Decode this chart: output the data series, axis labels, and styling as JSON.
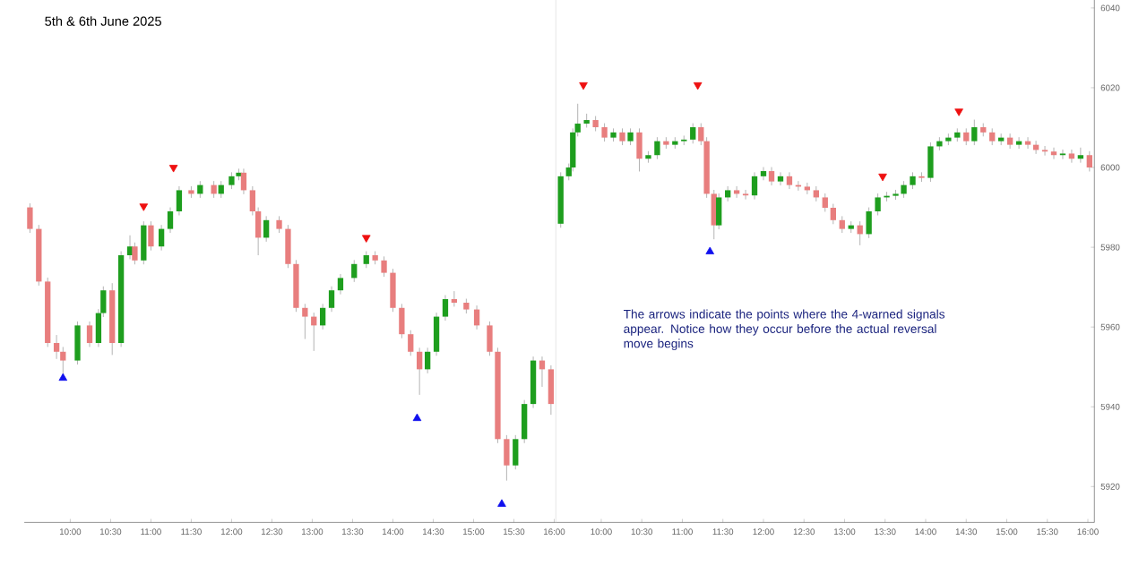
{
  "chart_data": [
    {
      "type": "candlestick",
      "title": "5th & 6th June 2025",
      "tick_labels": "x",
      "x": [
        9.5,
        9.61,
        9.72,
        9.83,
        9.91,
        10.09,
        10.24,
        10.35,
        10.41,
        10.52,
        10.63,
        10.74,
        10.8,
        10.91,
        11.0,
        11.13,
        11.24,
        11.35,
        11.5,
        11.61,
        11.78,
        11.87,
        12.0,
        12.09,
        12.15,
        12.26,
        12.33,
        12.43,
        12.59,
        12.7,
        12.8,
        12.91,
        13.02,
        13.13,
        13.24,
        13.35,
        13.52,
        13.67,
        13.78,
        13.89,
        14.0,
        14.11,
        14.22,
        14.33,
        14.43,
        14.54,
        14.65,
        14.76,
        14.91,
        15.04,
        15.2,
        15.3,
        15.41,
        15.52,
        15.63,
        15.74,
        15.85,
        15.96
      ],
      "ohlc": [
        [
          5990.0,
          5991.0,
          5983.6,
          5984.6
        ],
        [
          5984.6,
          5985.6,
          5970.4,
          5971.4
        ],
        [
          5971.4,
          5972.4,
          5955.0,
          5956.0
        ],
        [
          5956.0,
          5958.0,
          5952.0,
          5953.8
        ],
        [
          5953.8,
          5955.0,
          5948.0,
          5951.6
        ],
        [
          5951.6,
          5961.4,
          5950.6,
          5960.4
        ],
        [
          5960.4,
          5961.4,
          5955.0,
          5956.0
        ],
        [
          5956.0,
          5964.5,
          5955.0,
          5963.5
        ],
        [
          5963.5,
          5970.2,
          5962.5,
          5969.2
        ],
        [
          5969.2,
          5971.0,
          5953.0,
          5956.0
        ],
        [
          5956.0,
          5979.0,
          5955.0,
          5978.0
        ],
        [
          5978.0,
          5983.0,
          5977.0,
          5980.2
        ],
        [
          5980.2,
          5981.2,
          5975.7,
          5976.7
        ],
        [
          5976.7,
          5986.5,
          5975.7,
          5985.5
        ],
        [
          5985.5,
          5986.5,
          5979.2,
          5980.2
        ],
        [
          5980.2,
          5985.6,
          5979.2,
          5984.6
        ],
        [
          5984.6,
          5990.0,
          5983.6,
          5989.0
        ],
        [
          5989.0,
          5995.3,
          5988.0,
          5994.3
        ],
        [
          5994.3,
          5995.3,
          5992.4,
          5993.4
        ],
        [
          5993.4,
          5996.6,
          5992.4,
          5995.6
        ],
        [
          5995.6,
          5996.6,
          5992.4,
          5993.4
        ],
        [
          5993.4,
          5996.6,
          5992.4,
          5995.6
        ],
        [
          5995.6,
          5998.8,
          5994.6,
          5997.8
        ],
        [
          5997.8,
          5999.7,
          5996.8,
          5998.7
        ],
        [
          5998.7,
          5999.7,
          5993.3,
          5994.3
        ],
        [
          5994.3,
          5995.3,
          5988.0,
          5989.0
        ],
        [
          5989.0,
          5990.0,
          5978.0,
          5982.4
        ],
        [
          5982.4,
          5987.8,
          5981.4,
          5986.8
        ],
        [
          5986.8,
          5987.8,
          5983.6,
          5984.6
        ],
        [
          5984.6,
          5985.6,
          5974.8,
          5975.8
        ],
        [
          5975.8,
          5976.8,
          5963.8,
          5964.8
        ],
        [
          5964.8,
          5965.8,
          5957.0,
          5962.6
        ],
        [
          5962.6,
          5963.6,
          5954.0,
          5960.4
        ],
        [
          5960.4,
          5965.8,
          5959.4,
          5964.8
        ],
        [
          5964.8,
          5970.2,
          5963.8,
          5969.2
        ],
        [
          5969.2,
          5973.3,
          5968.2,
          5972.3
        ],
        [
          5972.3,
          5976.8,
          5971.3,
          5975.8
        ],
        [
          5975.8,
          5979.0,
          5974.8,
          5978.0
        ],
        [
          5978.0,
          5979.0,
          5975.7,
          5976.7
        ],
        [
          5976.7,
          5977.7,
          5972.6,
          5973.6
        ],
        [
          5973.6,
          5974.6,
          5963.8,
          5964.8
        ],
        [
          5964.8,
          5965.8,
          5957.2,
          5958.2
        ],
        [
          5958.2,
          5959.2,
          5952.8,
          5953.8
        ],
        [
          5953.8,
          5954.8,
          5943.0,
          5949.4
        ],
        [
          5949.4,
          5954.8,
          5948.4,
          5953.8
        ],
        [
          5953.8,
          5963.6,
          5952.8,
          5962.6
        ],
        [
          5962.6,
          5968.0,
          5961.6,
          5967.0
        ],
        [
          5967.0,
          5969.0,
          5965.1,
          5966.1
        ],
        [
          5966.1,
          5967.1,
          5963.4,
          5964.4
        ],
        [
          5964.4,
          5965.4,
          5959.4,
          5960.4
        ],
        [
          5960.4,
          5961.4,
          5952.8,
          5953.8
        ],
        [
          5953.8,
          5954.8,
          5930.9,
          5931.9
        ],
        [
          5931.9,
          5932.9,
          5921.5,
          5925.3
        ],
        [
          5925.3,
          5932.9,
          5924.3,
          5931.9
        ],
        [
          5931.9,
          5941.7,
          5930.9,
          5940.7
        ],
        [
          5940.7,
          5952.6,
          5939.7,
          5951.6
        ],
        [
          5951.6,
          5952.6,
          5945.0,
          5949.4
        ],
        [
          5949.4,
          5950.4,
          5938.0,
          5940.7
        ]
      ],
      "colors": [
        "#e87e7e",
        "#e87e7e",
        "#e87e7e",
        "#e87e7e",
        "#e87e7e",
        "#1e9e1e",
        "#e87e7e",
        "#1e9e1e",
        "#1e9e1e",
        "#e87e7e",
        "#1e9e1e",
        "#1e9e1e",
        "#e87e7e",
        "#1e9e1e",
        "#e87e7e",
        "#1e9e1e",
        "#1e9e1e",
        "#1e9e1e",
        "#e87e7e",
        "#1e9e1e",
        "#e87e7e",
        "#1e9e1e",
        "#1e9e1e",
        "#1e9e1e",
        "#e87e7e",
        "#e87e7e",
        "#e87e7e",
        "#1e9e1e",
        "#e87e7e",
        "#e87e7e",
        "#e87e7e",
        "#e87e7e",
        "#e87e7e",
        "#1e9e1e",
        "#1e9e1e",
        "#1e9e1e",
        "#1e9e1e",
        "#1e9e1e",
        "#e87e7e",
        "#e87e7e",
        "#e87e7e",
        "#e87e7e",
        "#e87e7e",
        "#e87e7e",
        "#1e9e1e",
        "#1e9e1e",
        "#1e9e1e",
        "#e87e7e",
        "#e87e7e",
        "#e87e7e",
        "#e87e7e",
        "#e87e7e",
        "#e87e7e",
        "#1e9e1e",
        "#1e9e1e",
        "#1e9e1e",
        "#e87e7e",
        "#e87e7e"
      ],
      "series": [
        {
          "type": "scatter",
          "marker": "triangle",
          "color": "#1010ee",
          "x": [
            9.91,
            14.3,
            15.35
          ],
          "values": [
            5947.2,
            5937.1,
            5915.6
          ]
        },
        {
          "type": "scatter",
          "marker": "triangle",
          "color": "#ee1010",
          "x": [
            10.91,
            11.28,
            13.67
          ],
          "values": [
            5990.3,
            6000.0,
            5982.4
          ]
        }
      ],
      "xlim": [
        9.43,
        16.02
      ],
      "ylim": [
        5911,
        6042
      ],
      "xticks": [
        {
          "value": 10.0,
          "label": "10:00"
        },
        {
          "value": 10.5,
          "label": "10:30"
        },
        {
          "value": 11.0,
          "label": "11:00"
        },
        {
          "value": 11.5,
          "label": "11:30"
        },
        {
          "value": 12.0,
          "label": "12:00"
        },
        {
          "value": 12.5,
          "label": "12:30"
        },
        {
          "value": 13.0,
          "label": "13:00"
        },
        {
          "value": 13.5,
          "label": "13:30"
        },
        {
          "value": 14.0,
          "label": "14:00"
        },
        {
          "value": 14.5,
          "label": "14:30"
        },
        {
          "value": 15.0,
          "label": "15:00"
        },
        {
          "value": 15.5,
          "label": "15:30"
        },
        {
          "value": 16.0,
          "label": "16:00"
        }
      ],
      "yticks": [
        5920,
        5940,
        5960,
        5980,
        6000,
        6020,
        6040
      ]
    },
    {
      "type": "candlestick",
      "annotations": [
        "The arrows indicate the points where the 4-warned signals appear. Notice how they occur before the actual reversal move begins"
      ],
      "x": [
        9.5,
        9.6,
        9.65,
        9.71,
        9.82,
        9.93,
        10.04,
        10.15,
        10.26,
        10.36,
        10.47,
        10.58,
        10.69,
        10.8,
        10.91,
        11.02,
        11.13,
        11.23,
        11.3,
        11.39,
        11.45,
        11.56,
        11.67,
        11.78,
        11.89,
        12.0,
        12.1,
        12.21,
        12.32,
        12.43,
        12.54,
        12.65,
        12.76,
        12.86,
        12.97,
        13.08,
        13.19,
        13.3,
        13.41,
        13.52,
        13.63,
        13.73,
        13.84,
        13.95,
        14.06,
        14.17,
        14.28,
        14.39,
        14.5,
        14.6,
        14.71,
        14.82,
        14.93,
        15.04,
        15.15,
        15.26,
        15.36,
        15.47,
        15.58,
        15.69,
        15.8,
        15.91,
        16.02
      ],
      "ohlc": [
        [
          5985.9,
          5998.8,
          5984.9,
          5997.8
        ],
        [
          5997.8,
          6001.0,
          5996.8,
          6000.0
        ],
        [
          6000.0,
          6009.8,
          5999.0,
          6008.8
        ],
        [
          6008.8,
          6016.0,
          6007.8,
          6011.0
        ],
        [
          6011.0,
          6013.5,
          6010.0,
          6011.9
        ],
        [
          6011.9,
          6012.9,
          6009.1,
          6010.1
        ],
        [
          6010.1,
          6011.1,
          6006.5,
          6007.5
        ],
        [
          6007.5,
          6009.8,
          6006.5,
          6008.8
        ],
        [
          6008.8,
          6009.8,
          6005.6,
          6006.6
        ],
        [
          6006.6,
          6009.8,
          6005.6,
          6008.8
        ],
        [
          6008.8,
          6009.8,
          5999.0,
          6002.2
        ],
        [
          6002.2,
          6004.1,
          6001.2,
          6003.1
        ],
        [
          6003.1,
          6007.6,
          6002.1,
          6006.6
        ],
        [
          6006.6,
          6007.6,
          6004.7,
          6005.7
        ],
        [
          6005.7,
          6007.6,
          6004.7,
          6006.6
        ],
        [
          6006.6,
          6008.0,
          6005.6,
          6007.0
        ],
        [
          6007.0,
          6011.1,
          6006.0,
          6010.1
        ],
        [
          6010.1,
          6011.1,
          6005.6,
          6006.6
        ],
        [
          6006.6,
          6007.6,
          5992.4,
          5993.4
        ],
        [
          5993.4,
          5994.4,
          5982.0,
          5985.5
        ],
        [
          5985.5,
          5993.5,
          5984.5,
          5992.5
        ],
        [
          5992.5,
          5995.3,
          5991.5,
          5994.3
        ],
        [
          5994.3,
          5995.3,
          5992.4,
          5993.4
        ],
        [
          5993.4,
          5994.4,
          5992.0,
          5993.0
        ],
        [
          5993.0,
          5998.8,
          5992.0,
          5997.8
        ],
        [
          5997.8,
          6000.1,
          5996.8,
          5999.1
        ],
        [
          5999.1,
          6000.1,
          5995.5,
          5996.5
        ],
        [
          5996.5,
          5998.8,
          5995.5,
          5997.8
        ],
        [
          5997.8,
          5998.8,
          5994.6,
          5995.6
        ],
        [
          5995.6,
          5996.6,
          5994.2,
          5995.2
        ],
        [
          5995.2,
          5996.2,
          5993.3,
          5994.3
        ],
        [
          5994.3,
          5995.3,
          5991.5,
          5992.5
        ],
        [
          5992.5,
          5993.5,
          5988.9,
          5989.9
        ],
        [
          5989.9,
          5990.9,
          5985.8,
          5986.8
        ],
        [
          5986.8,
          5987.8,
          5983.6,
          5984.6
        ],
        [
          5984.6,
          5986.5,
          5983.6,
          5985.5
        ],
        [
          5985.5,
          5986.5,
          5980.5,
          5983.3
        ],
        [
          5983.3,
          5990.0,
          5982.3,
          5989.0
        ],
        [
          5989.0,
          5993.5,
          5988.0,
          5992.5
        ],
        [
          5992.5,
          5993.9,
          5991.5,
          5992.9
        ],
        [
          5992.9,
          5994.4,
          5991.9,
          5993.4
        ],
        [
          5993.4,
          5996.6,
          5992.4,
          5995.6
        ],
        [
          5995.6,
          5998.8,
          5994.6,
          5997.8
        ],
        [
          5997.8,
          5998.8,
          5996.4,
          5997.4
        ],
        [
          5997.4,
          6006.3,
          5996.4,
          6005.3
        ],
        [
          6005.3,
          6007.6,
          6004.3,
          6006.6
        ],
        [
          6006.6,
          6008.5,
          6005.6,
          6007.5
        ],
        [
          6007.5,
          6009.8,
          6006.5,
          6008.8
        ],
        [
          6008.8,
          6009.8,
          6005.6,
          6006.6
        ],
        [
          6006.6,
          6012.0,
          6005.6,
          6010.1
        ],
        [
          6010.1,
          6011.1,
          6007.8,
          6008.8
        ],
        [
          6008.8,
          6009.8,
          6005.6,
          6006.6
        ],
        [
          6006.6,
          6008.5,
          6005.6,
          6007.5
        ],
        [
          6007.5,
          6008.5,
          6004.7,
          6005.7
        ],
        [
          6005.7,
          6007.6,
          6004.7,
          6006.6
        ],
        [
          6006.6,
          6007.6,
          6004.7,
          6005.7
        ],
        [
          6005.7,
          6006.7,
          6003.4,
          6004.4
        ],
        [
          6004.4,
          6005.4,
          6003.0,
          6004.0
        ],
        [
          6004.0,
          6005.0,
          6002.1,
          6003.1
        ],
        [
          6003.1,
          6004.5,
          6002.1,
          6003.5
        ],
        [
          6003.5,
          6004.5,
          6001.2,
          6002.2
        ],
        [
          6002.2,
          6005.0,
          6001.2,
          6003.1
        ],
        [
          6003.1,
          6004.1,
          5999.0,
          6000.0
        ]
      ],
      "colors": [
        "#1e9e1e",
        "#1e9e1e",
        "#1e9e1e",
        "#1e9e1e",
        "#1e9e1e",
        "#e87e7e",
        "#e87e7e",
        "#1e9e1e",
        "#e87e7e",
        "#1e9e1e",
        "#e87e7e",
        "#1e9e1e",
        "#1e9e1e",
        "#e87e7e",
        "#1e9e1e",
        "#1e9e1e",
        "#1e9e1e",
        "#e87e7e",
        "#e87e7e",
        "#e87e7e",
        "#1e9e1e",
        "#1e9e1e",
        "#e87e7e",
        "#e87e7e",
        "#1e9e1e",
        "#1e9e1e",
        "#e87e7e",
        "#1e9e1e",
        "#e87e7e",
        "#e87e7e",
        "#e87e7e",
        "#e87e7e",
        "#e87e7e",
        "#e87e7e",
        "#e87e7e",
        "#1e9e1e",
        "#e87e7e",
        "#1e9e1e",
        "#1e9e1e",
        "#1e9e1e",
        "#1e9e1e",
        "#1e9e1e",
        "#1e9e1e",
        "#e87e7e",
        "#1e9e1e",
        "#1e9e1e",
        "#1e9e1e",
        "#1e9e1e",
        "#e87e7e",
        "#1e9e1e",
        "#e87e7e",
        "#e87e7e",
        "#1e9e1e",
        "#e87e7e",
        "#1e9e1e",
        "#e87e7e",
        "#e87e7e",
        "#e87e7e",
        "#e87e7e",
        "#1e9e1e",
        "#e87e7e",
        "#1e9e1e",
        "#e87e7e"
      ],
      "series": [
        {
          "type": "scatter",
          "marker": "triangle",
          "color": "#1010ee",
          "x": [
            11.34
          ],
          "values": [
            5978.9
          ]
        },
        {
          "type": "scatter",
          "marker": "triangle",
          "color": "#ee1010",
          "x": [
            9.78,
            11.19,
            13.47,
            14.41
          ],
          "values": [
            6020.7,
            6020.7,
            5997.8,
            6014.1
          ]
        }
      ],
      "xlim": [
        9.44,
        16.08
      ],
      "ylim": [
        5911,
        6042
      ],
      "xticks": [
        {
          "value": 10.0,
          "label": "10:00"
        },
        {
          "value": 10.5,
          "label": "10:30"
        },
        {
          "value": 11.0,
          "label": "11:00"
        },
        {
          "value": 11.5,
          "label": "11:30"
        },
        {
          "value": 12.0,
          "label": "12:00"
        },
        {
          "value": 12.5,
          "label": "12:30"
        },
        {
          "value": 13.0,
          "label": "13:00"
        },
        {
          "value": 13.5,
          "label": "13:30"
        },
        {
          "value": 14.0,
          "label": "14:00"
        },
        {
          "value": 14.5,
          "label": "14:30"
        },
        {
          "value": 15.0,
          "label": "15:00"
        },
        {
          "value": 15.5,
          "label": "15:30"
        },
        {
          "value": 16.0,
          "label": "16:00"
        }
      ],
      "yticks": [
        5920,
        5940,
        5960,
        5980,
        6000,
        6020,
        6040
      ]
    }
  ]
}
